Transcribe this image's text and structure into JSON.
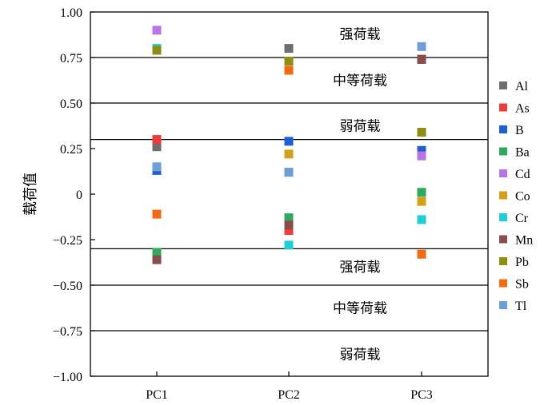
{
  "chart_data": {
    "type": "scatter",
    "title": "",
    "xlabel": "",
    "ylabel": "载荷值",
    "ylim": [
      -1.0,
      1.0
    ],
    "yticks": [
      "1.00",
      "0.75",
      "0.50",
      "0.25",
      "0",
      "−0.25",
      "−0.50",
      "−0.75",
      "−1.00"
    ],
    "ytick_values": [
      1.0,
      0.75,
      0.5,
      0.25,
      0,
      -0.25,
      -0.5,
      -0.75,
      -1.0
    ],
    "categories": [
      "PC1",
      "PC2",
      "PC3"
    ],
    "grid": false,
    "legend_position": "right",
    "threshold_lines": [
      0.75,
      0.5,
      0.3,
      -0.3,
      -0.5,
      -0.75
    ],
    "band_labels": [
      {
        "text": "强荷载",
        "y": 0.88
      },
      {
        "text": "中等荷载",
        "y": 0.625
      },
      {
        "text": "弱荷载",
        "y": 0.375
      },
      {
        "text": "强荷载",
        "y": -0.4
      },
      {
        "text": "中等荷载",
        "y": -0.625
      },
      {
        "text": "弱荷载",
        "y": -0.88
      }
    ],
    "series": [
      {
        "name": "Al",
        "color": "#6e6e6e",
        "values": [
          0.26,
          0.8,
          0.74
        ]
      },
      {
        "name": "As",
        "color": "#ee3b3b",
        "values": [
          0.3,
          -0.2,
          0.74
        ]
      },
      {
        "name": "B",
        "color": "#1f5fd6",
        "values": [
          0.13,
          0.29,
          0.24
        ]
      },
      {
        "name": "Ba",
        "color": "#2eaa5c",
        "values": [
          -0.32,
          -0.13,
          0.01
        ]
      },
      {
        "name": "Cd",
        "color": "#b973e6",
        "values": [
          0.9,
          0.12,
          0.21
        ]
      },
      {
        "name": "Co",
        "color": "#d4a017",
        "values": [
          0.79,
          0.22,
          -0.04
        ]
      },
      {
        "name": "Cr",
        "color": "#1fcfd6",
        "values": [
          0.8,
          -0.28,
          -0.14
        ]
      },
      {
        "name": "Mn",
        "color": "#8b4c4c",
        "values": [
          -0.36,
          -0.17,
          0.74
        ]
      },
      {
        "name": "Pb",
        "color": "#8e8e12",
        "values": [
          0.79,
          0.73,
          0.34
        ]
      },
      {
        "name": "Sb",
        "color": "#f36a10",
        "values": [
          -0.11,
          0.68,
          -0.33
        ]
      },
      {
        "name": "Tl",
        "color": "#6d9ed8",
        "values": [
          0.15,
          0.12,
          0.81
        ]
      }
    ]
  }
}
